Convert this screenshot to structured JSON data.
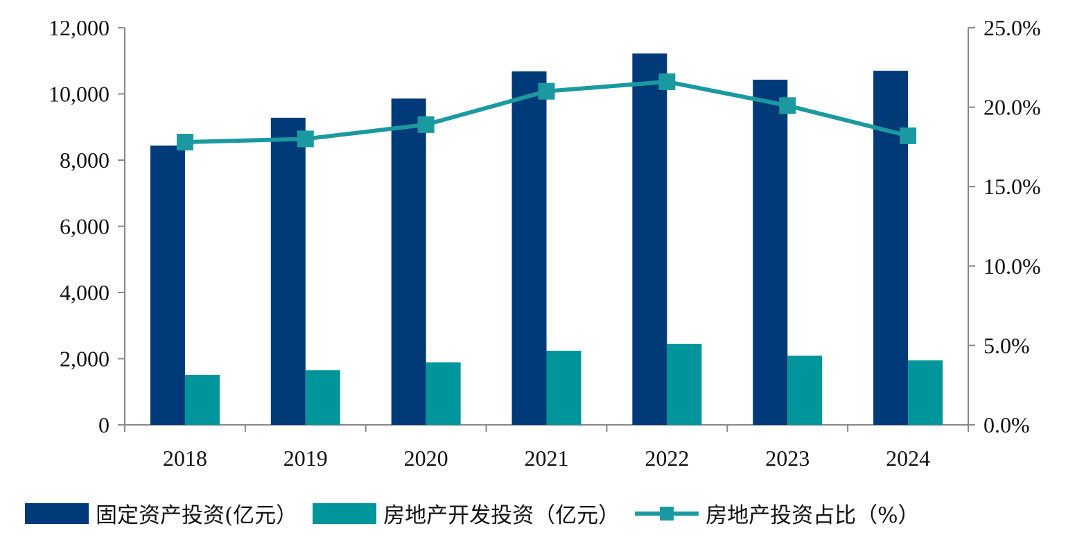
{
  "chart_data": {
    "type": "bar",
    "categories": [
      "2018",
      "2019",
      "2020",
      "2021",
      "2022",
      "2023",
      "2024"
    ],
    "series": [
      {
        "name": "固定资产投资(亿元）",
        "type": "bar",
        "axis": "left",
        "color": "#003a78",
        "values": [
          8440,
          9280,
          9860,
          10680,
          11220,
          10430,
          10700
        ]
      },
      {
        "name": "房地产开发投资（亿元）",
        "type": "bar",
        "axis": "left",
        "color": "#00959b",
        "values": [
          1510,
          1650,
          1890,
          2240,
          2450,
          2090,
          1950
        ]
      },
      {
        "name": "房地产投资占比（%）",
        "type": "line",
        "axis": "right",
        "color": "#1a9aa0",
        "values": [
          17.8,
          18.0,
          18.9,
          21.0,
          21.6,
          20.1,
          18.2
        ]
      }
    ],
    "left_axis": {
      "min": 0,
      "max": 12000,
      "ticks": [
        "0",
        "2,000",
        "4,000",
        "6,000",
        "8,000",
        "10,000",
        "12,000"
      ]
    },
    "right_axis": {
      "min": 0,
      "max": 25,
      "ticks": [
        "0.0%",
        "5.0%",
        "10.0%",
        "15.0%",
        "20.0%",
        "25.0%"
      ]
    },
    "title": "",
    "xlabel": "",
    "ylabel": "",
    "grid": false,
    "legend_position": "bottom"
  }
}
